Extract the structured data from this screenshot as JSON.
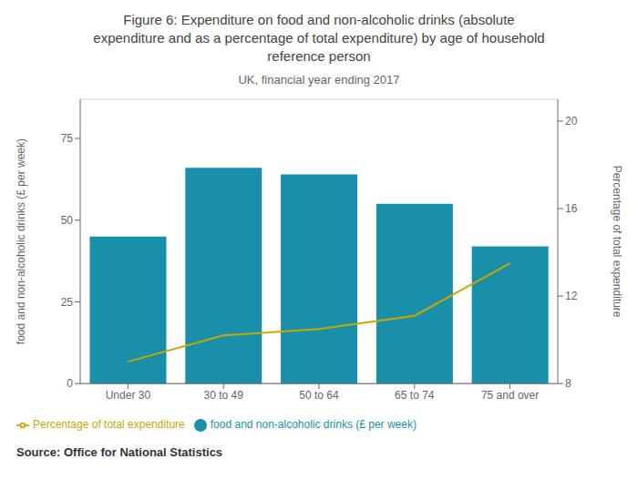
{
  "chart_data": {
    "type": "bar",
    "title": "Figure 6: Expenditure on food and non-alcoholic drinks (absolute\nexpenditure and as a percentage of total expenditure) by age of household\nreference person",
    "subtitle": "UK, financial year ending 2017",
    "source": "Source: Office for National Statistics",
    "categories": [
      "Under 30",
      "30 to 49",
      "50 to 64",
      "65 to 74",
      "75 and over"
    ],
    "series": [
      {
        "name": "food and non-alcoholic drinks (£ per week)",
        "type": "bar",
        "color": "#1a8faa",
        "values": [
          45.0,
          66.0,
          64.0,
          55.0,
          42.0
        ]
      },
      {
        "name": "Percentage of total expenditure",
        "type": "line",
        "axis": "y2",
        "color": "#c8a800",
        "values": [
          9.0,
          10.2,
          10.5,
          11.1,
          13.5
        ]
      }
    ],
    "ylabel": "food and non-alcoholic drinks (£ per week)",
    "y2label": "Percentage of total expenditure",
    "ylim": [
      0,
      87
    ],
    "yticks": [
      0,
      25,
      50,
      75
    ],
    "y2lim": [
      8,
      21
    ],
    "y2ticks": [
      8,
      12,
      16,
      20
    ],
    "grid": true,
    "legend": "bottom"
  }
}
